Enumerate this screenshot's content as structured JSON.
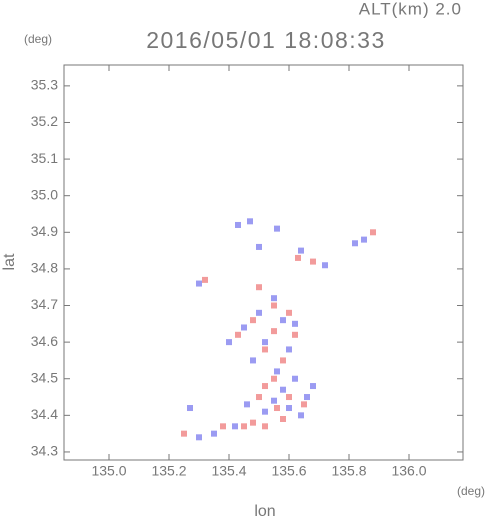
{
  "chart_data": {
    "type": "scatter",
    "title": "2016/05/01 18:08:33",
    "subtitle": "ALT(km) 2.0",
    "y_unit": "(deg)",
    "x_unit": "(deg)",
    "xlabel": "lon",
    "ylabel": "lat",
    "xlim": [
      134.85,
      136.18
    ],
    "ylim": [
      34.278,
      35.357
    ],
    "xticks": [
      {
        "value": 135,
        "label": "135.0"
      },
      135.2,
      135.4,
      135.6,
      135.8,
      {
        "value": 136,
        "label": "136.0"
      }
    ],
    "yticks": [
      34.3,
      34.4,
      34.5,
      34.6,
      34.7,
      34.8,
      34.9,
      {
        "value": 35,
        "label": "35.0"
      },
      35.1,
      35.2,
      35.3
    ],
    "series": [
      {
        "color": "#8a8af0",
        "x": [
          135.43,
          135.47,
          135.56,
          135.85,
          135.82,
          135.5,
          135.64,
          135.72,
          135.3,
          135.55,
          135.5,
          135.58,
          135.62,
          135.45,
          135.4,
          135.52,
          135.6,
          135.48,
          135.56,
          135.62,
          135.58,
          135.66,
          135.55,
          135.6,
          135.52,
          135.46,
          135.27,
          135.42,
          135.35,
          135.3,
          135.64,
          135.68
        ],
        "values": [
          34.92,
          34.93,
          34.91,
          34.88,
          34.87,
          34.86,
          34.85,
          34.81,
          34.76,
          34.72,
          34.68,
          34.66,
          34.65,
          34.64,
          34.6,
          34.6,
          34.58,
          34.55,
          34.52,
          34.5,
          34.47,
          34.45,
          34.44,
          34.42,
          34.41,
          34.43,
          34.42,
          34.37,
          34.35,
          34.34,
          34.4,
          34.48
        ]
      },
      {
        "color": "#f08a8a",
        "x": [
          135.88,
          135.63,
          135.68,
          135.55,
          135.6,
          135.48,
          135.55,
          135.62,
          135.52,
          135.58,
          135.55,
          135.52,
          135.6,
          135.5,
          135.56,
          135.48,
          135.52,
          135.45,
          135.38,
          135.25,
          135.58,
          135.65,
          135.43,
          135.5,
          135.32
        ],
        "values": [
          34.9,
          34.83,
          34.82,
          34.7,
          34.68,
          34.66,
          34.63,
          34.62,
          34.58,
          34.55,
          34.5,
          34.48,
          34.45,
          34.45,
          34.42,
          34.38,
          34.37,
          34.37,
          34.37,
          34.35,
          34.39,
          34.43,
          34.62,
          34.75,
          34.77
        ]
      }
    ]
  }
}
